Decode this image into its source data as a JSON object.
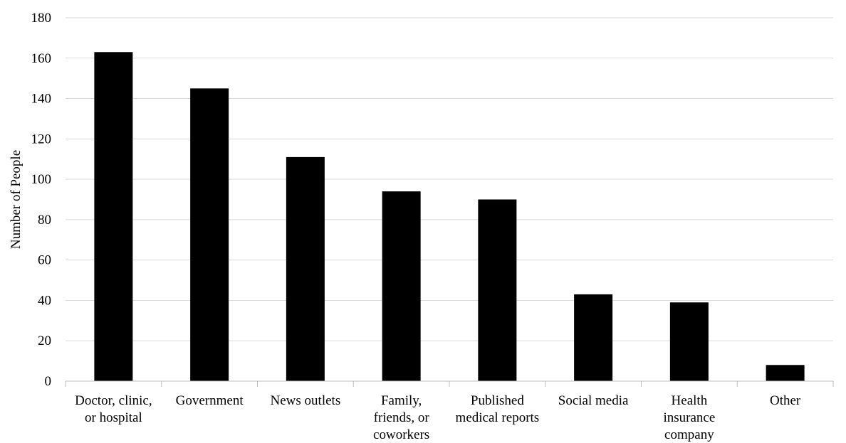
{
  "chart_data": {
    "type": "bar",
    "title": "",
    "xlabel": "",
    "ylabel": "Number of People",
    "ylim": [
      0,
      180
    ],
    "yticks": [
      0,
      20,
      40,
      60,
      80,
      100,
      120,
      140,
      160,
      180
    ],
    "grid": true,
    "legend": "none",
    "bar_color": "#000000",
    "categories": [
      [
        "Doctor, clinic,",
        "or hospital"
      ],
      [
        "Government"
      ],
      [
        "News outlets"
      ],
      [
        "Family,",
        "friends, or",
        "coworkers"
      ],
      [
        "Published",
        "medical reports"
      ],
      [
        "Social media"
      ],
      [
        "Health",
        "insurance",
        "company"
      ],
      [
        "Other"
      ]
    ],
    "values": [
      163,
      145,
      111,
      94,
      90,
      43,
      39,
      8
    ]
  }
}
